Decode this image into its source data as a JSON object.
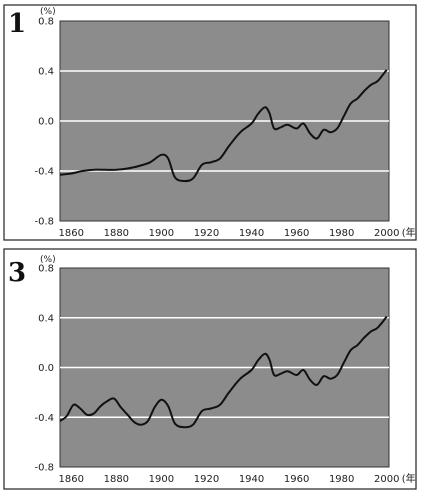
{
  "chart_data": [
    {
      "type": "line",
      "panel_label": "1",
      "y_unit": "(%)",
      "x_unit": "(年",
      "xlim": [
        1855,
        2001
      ],
      "ylim": [
        -0.8,
        0.8
      ],
      "y_ticks": [
        "0.8",
        "0.4",
        "0.0",
        "-0.4",
        "-0.8"
      ],
      "y_tick_values": [
        0.8,
        0.4,
        0.0,
        -0.4,
        -0.8
      ],
      "x_ticks": [
        "1860",
        "1880",
        "1900",
        "1920",
        "1940",
        "1960",
        "1980",
        "2000"
      ],
      "x_tick_values": [
        1860,
        1880,
        1900,
        1920,
        1940,
        1960,
        1980,
        2000
      ],
      "grid": "horizontal white lines at 0.4, 0.0, -0.4",
      "background": "dark gray shaded plot area",
      "series": [
        {
          "x": [
            1855,
            1860,
            1865,
            1870,
            1875,
            1880,
            1885,
            1890,
            1895,
            1900,
            1903,
            1906,
            1910,
            1914,
            1918,
            1922,
            1926,
            1930,
            1935,
            1940,
            1943,
            1946,
            1948,
            1950,
            1953,
            1956,
            1960,
            1963,
            1966,
            1969,
            1972,
            1975,
            1978,
            1981,
            1984,
            1987,
            1990,
            1993,
            1996,
            2000
          ],
          "y": [
            -0.43,
            -0.42,
            -0.4,
            -0.39,
            -0.39,
            -0.39,
            -0.38,
            -0.36,
            -0.33,
            -0.27,
            -0.3,
            -0.45,
            -0.48,
            -0.46,
            -0.35,
            -0.33,
            -0.3,
            -0.2,
            -0.09,
            -0.02,
            0.06,
            0.11,
            0.06,
            -0.06,
            -0.05,
            -0.03,
            -0.06,
            -0.02,
            -0.1,
            -0.14,
            -0.07,
            -0.09,
            -0.06,
            0.04,
            0.14,
            0.18,
            0.24,
            0.29,
            0.32,
            0.41
          ]
        }
      ]
    },
    {
      "type": "line",
      "panel_label": "3",
      "y_unit": "(%)",
      "x_unit": "(年",
      "xlim": [
        1855,
        2001
      ],
      "ylim": [
        -0.8,
        0.8
      ],
      "y_ticks": [
        "0.8",
        "0.4",
        "0.0",
        "-0.4",
        "-0.8"
      ],
      "y_tick_values": [
        0.8,
        0.4,
        0.0,
        -0.4,
        -0.8
      ],
      "x_ticks": [
        "1860",
        "1880",
        "1900",
        "1920",
        "1940",
        "1960",
        "1980",
        "2000"
      ],
      "x_tick_values": [
        1860,
        1880,
        1900,
        1920,
        1940,
        1960,
        1980,
        2000
      ],
      "grid": "horizontal white lines at 0.4, 0.0, -0.4",
      "background": "dark gray shaded plot area",
      "series": [
        {
          "x": [
            1855,
            1858,
            1861,
            1864,
            1867,
            1870,
            1873,
            1876,
            1879,
            1882,
            1885,
            1888,
            1891,
            1894,
            1897,
            1900,
            1903,
            1906,
            1910,
            1914,
            1918,
            1922,
            1926,
            1930,
            1935,
            1940,
            1943,
            1946,
            1948,
            1950,
            1953,
            1956,
            1960,
            1963,
            1966,
            1969,
            1972,
            1975,
            1978,
            1981,
            1984,
            1987,
            1990,
            1993,
            1996,
            2000
          ],
          "y": [
            -0.43,
            -0.39,
            -0.3,
            -0.33,
            -0.38,
            -0.37,
            -0.31,
            -0.27,
            -0.25,
            -0.32,
            -0.38,
            -0.44,
            -0.46,
            -0.43,
            -0.32,
            -0.26,
            -0.31,
            -0.45,
            -0.48,
            -0.46,
            -0.35,
            -0.33,
            -0.3,
            -0.2,
            -0.09,
            -0.02,
            0.06,
            0.11,
            0.06,
            -0.06,
            -0.05,
            -0.03,
            -0.06,
            -0.02,
            -0.1,
            -0.14,
            -0.07,
            -0.09,
            -0.06,
            0.04,
            0.14,
            0.18,
            0.24,
            0.29,
            0.32,
            0.41
          ]
        }
      ]
    }
  ]
}
